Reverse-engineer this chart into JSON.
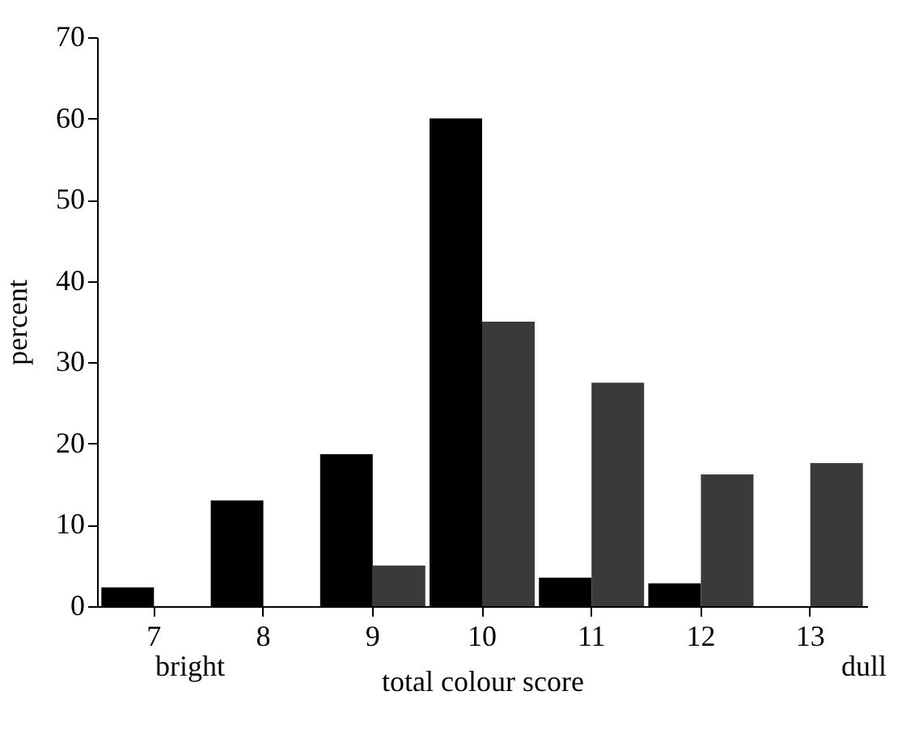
{
  "chart_data": {
    "type": "bar",
    "xlabel": "total colour score",
    "ylabel": "percent",
    "categories": [
      "7",
      "8",
      "9",
      "10",
      "11",
      "12",
      "13"
    ],
    "series": [
      {
        "color": "#000000",
        "values": [
          2.3,
          13,
          18.7,
          60,
          3.5,
          2.8,
          0
        ]
      },
      {
        "color": "#3a3a3a",
        "values": [
          0,
          0,
          5,
          35,
          27.5,
          16.2,
          17.6
        ]
      }
    ],
    "ylim": [
      0,
      70
    ],
    "yticks": [
      0,
      10,
      20,
      30,
      40,
      50,
      60,
      70
    ],
    "grid": false,
    "legend": false,
    "annotations": [
      "bright",
      "dull"
    ]
  }
}
